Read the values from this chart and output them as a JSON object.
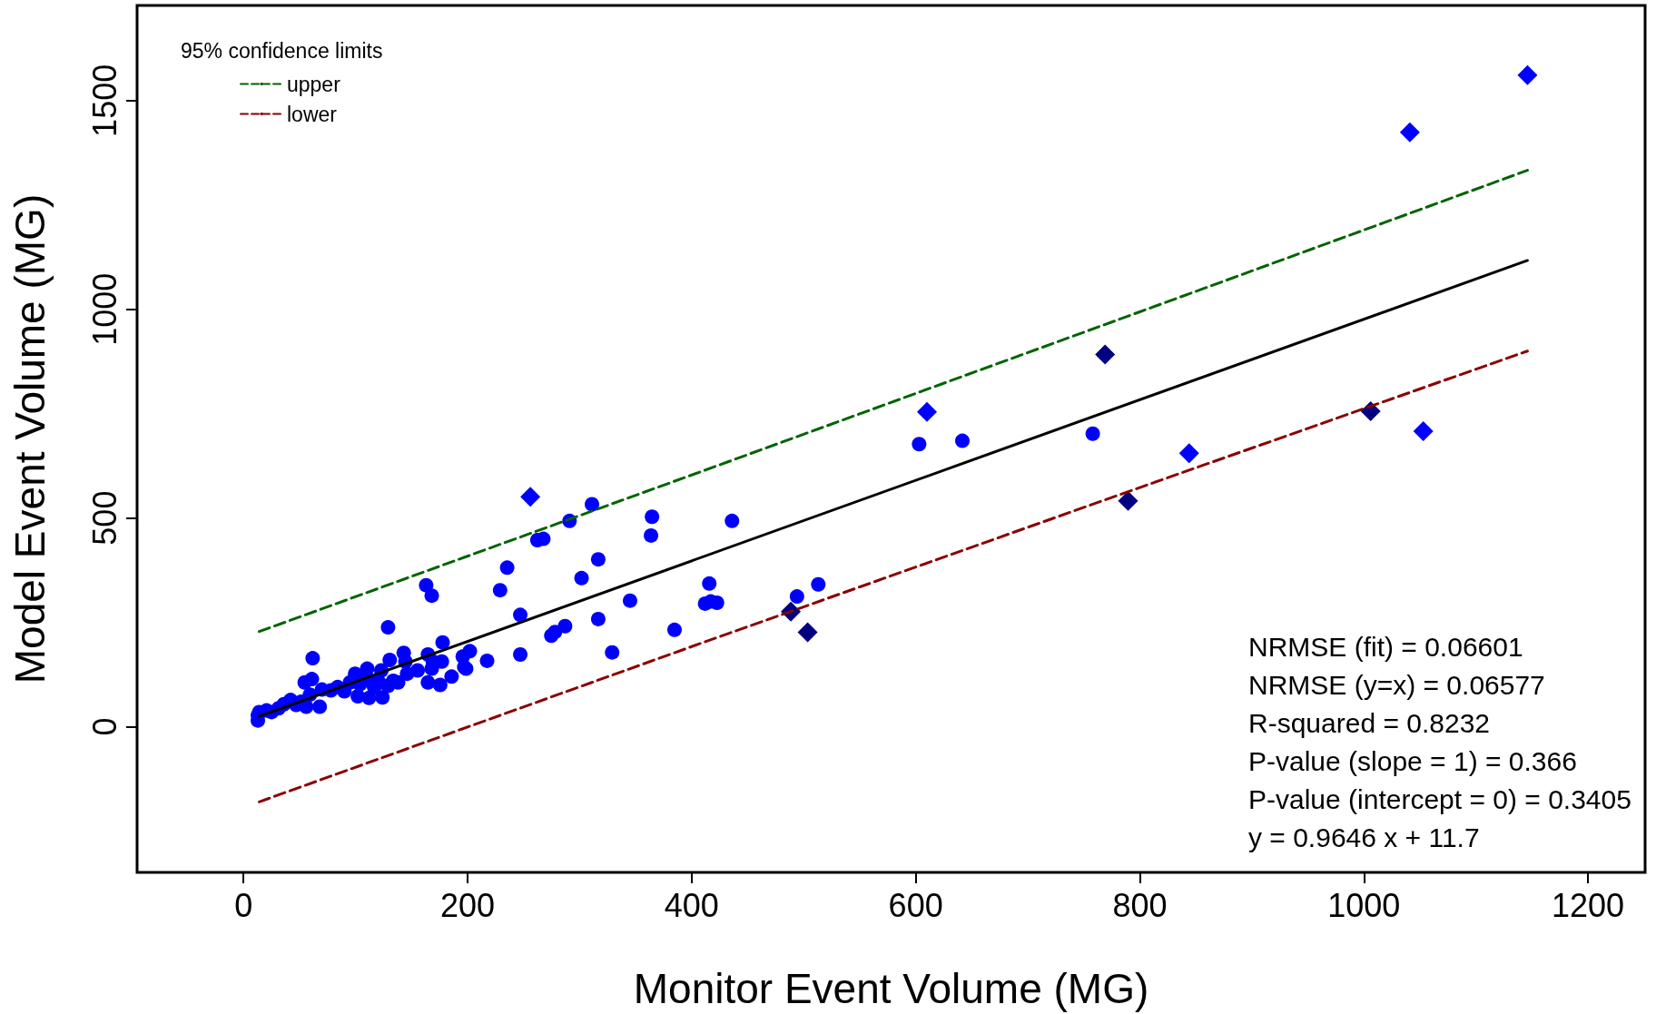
{
  "chart_data": {
    "type": "scatter",
    "xlabel": "Monitor Event Volume (MG)",
    "ylabel": "Model Event Volume (MG)",
    "legend_title": "95% confidence limits",
    "legend": "top left",
    "grid": false,
    "xlim": [
      -95,
      1251
    ],
    "ylim": [
      -349,
      1728
    ],
    "xticks": [
      0,
      200,
      400,
      600,
      800,
      1000,
      1200
    ],
    "yticks": [
      0,
      500,
      1000,
      1500
    ],
    "annotations": [
      "NRMSE (fit) = 0.06601",
      "NRMSE (y=x) = 0.06577",
      "R-squared = 0.8232",
      "P-value (slope = 1) = 0.366",
      "P-value (intercept = 0) = 0.3405",
      "y = 0.9646 x + 11.7"
    ],
    "series": [
      {
        "marker": "circle",
        "color": "#0000ff",
        "x": [
          12.8,
          12.8,
          14,
          20.5,
          25,
          31.3,
          36,
          42,
          47,
          51.5,
          56,
          54.6,
          61,
          61.7,
          59.3,
          68,
          70,
          78,
          84,
          90,
          95,
          99.6,
          102,
          104,
          107,
          110.4,
          112,
          113.5,
          116.6,
          121,
          123,
          124,
          129,
          129,
          130.5,
          133.6,
          138,
          143,
          144.5,
          146,
          155.4,
          164.6,
          164.6,
          168,
          169,
          163,
          168,
          175.5,
          177,
          177.7,
          185.7,
          195.7,
          197,
          198.7,
          202,
          217.4,
          229,
          235.3,
          247,
          247,
          262.3,
          267.6,
          274.7,
          278,
          287,
          291,
          301.7,
          311,
          316.6,
          316.6,
          329,
          345,
          363.7,
          364.6,
          384.7,
          415.7,
          412,
          417,
          422.6,
          436,
          494,
          513,
          603,
          641.6,
          758
        ],
        "values": [
          15,
          27,
          35,
          39,
          35,
          44,
          54,
          64,
          52,
          60,
          48,
          106,
          114,
          164,
          77,
          48,
          89,
          87,
          95,
          85,
          106,
          127,
          73,
          102,
          119,
          139,
          69,
          110,
          94,
          106,
          135,
          70,
          98,
          238,
          160,
          110,
          106,
          177,
          156,
          127,
          135,
          173,
          106,
          139,
          156,
          339,
          314,
          100,
          156,
          202,
          120,
          168,
          143,
          139,
          181,
          158,
          327,
          381,
          268,
          173,
          447,
          450,
          218,
          227,
          241,
          493,
          356,
          533,
          401,
          258,
          178,
          302,
          458,
          503,
          232,
          343,
          295,
          300,
          297,
          493,
          312,
          341,
          677,
          685,
          702
        ]
      },
      {
        "marker": "diamond",
        "color": "#0000ff",
        "x": [
          256,
          610,
          844,
          1041,
          1146,
          1053
        ],
        "values": [
          551,
          754,
          655,
          1424,
          1561,
          708
        ]
      },
      {
        "marker": "diamond",
        "color": "#000080",
        "x": [
          769,
          789.5,
          488.5,
          503.5,
          1006
        ],
        "values": [
          892,
          541,
          276,
          226,
          756
        ]
      },
      {
        "type": "line",
        "marker": "none",
        "line_style": "solid",
        "color": "#000000",
        "x": [
          14,
          1146
        ],
        "values": [
          25,
          1117
        ]
      },
      {
        "type": "line",
        "name": "upper",
        "marker": "none",
        "line_style": "dashed",
        "color": "#006400",
        "x": [
          14,
          400,
          800,
          1146
        ],
        "values": [
          228,
          603,
          994,
          1333
        ]
      },
      {
        "type": "line",
        "name": "lower",
        "marker": "none",
        "line_style": "dashed",
        "color": "#8b0000",
        "x": [
          14,
          400,
          800,
          1146
        ],
        "values": [
          -180,
          192,
          573,
          900
        ]
      }
    ]
  }
}
